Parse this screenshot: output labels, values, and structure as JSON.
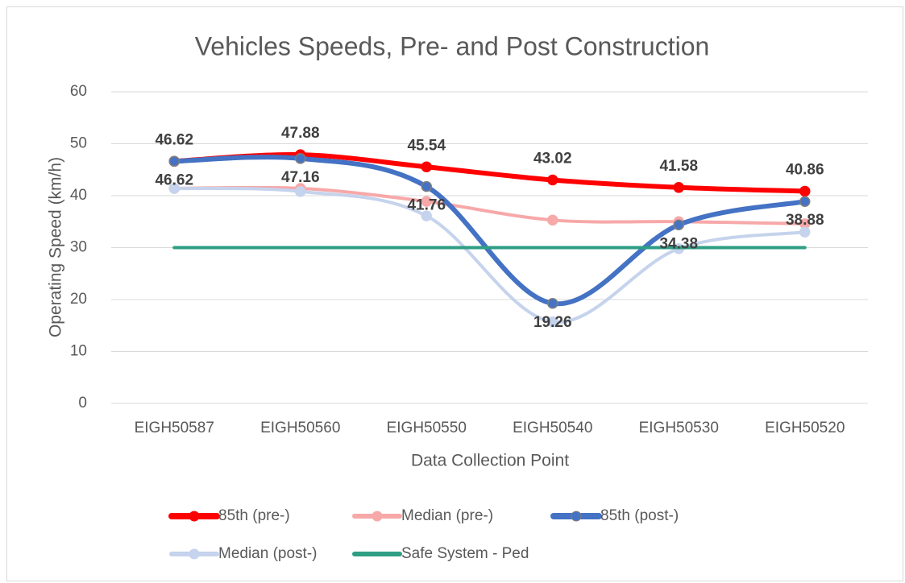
{
  "chart_data": {
    "type": "line",
    "title": "Vehicles Speeds, Pre- and Post Construction",
    "x_label": "Data Collection Point",
    "y_label": "Operating Speed (km/h)",
    "categories": [
      "EIGH50587",
      "EIGH50560",
      "EIGH50550",
      "EIGH50540",
      "EIGH50530",
      "EIGH50520"
    ],
    "ylim": [
      0,
      60
    ],
    "yticks": [
      0,
      10,
      20,
      30,
      40,
      50,
      60
    ],
    "grid": true,
    "smooth": true,
    "legend": "bottom",
    "series": [
      {
        "name": "85th (pre-)",
        "color": "#ff0000",
        "values": [
          46.62,
          47.88,
          45.54,
          43.02,
          41.58,
          40.86
        ],
        "markers": true,
        "data_labels": "above",
        "width": 6
      },
      {
        "name": "Median (pre-)",
        "color": "#f7a8a8",
        "values": [
          41.4,
          41.4,
          38.9,
          35.3,
          35.0,
          34.6
        ],
        "markers": true,
        "width": 4
      },
      {
        "name": "85th (post-)",
        "color": "#4472c4",
        "values": [
          46.62,
          47.16,
          41.76,
          19.26,
          34.38,
          38.88
        ],
        "markers": true,
        "data_labels": "below",
        "width": 6
      },
      {
        "name": "Median (post-)",
        "color": "#c5d3ec",
        "values": [
          41.4,
          40.8,
          36.1,
          15.7,
          29.8,
          33.0
        ],
        "markers": true,
        "width": 4
      },
      {
        "name": "Safe System - Ped",
        "color": "#2e9e84",
        "values": [
          30,
          30,
          30,
          30,
          30,
          30
        ],
        "markers": false,
        "width": 4
      }
    ]
  }
}
